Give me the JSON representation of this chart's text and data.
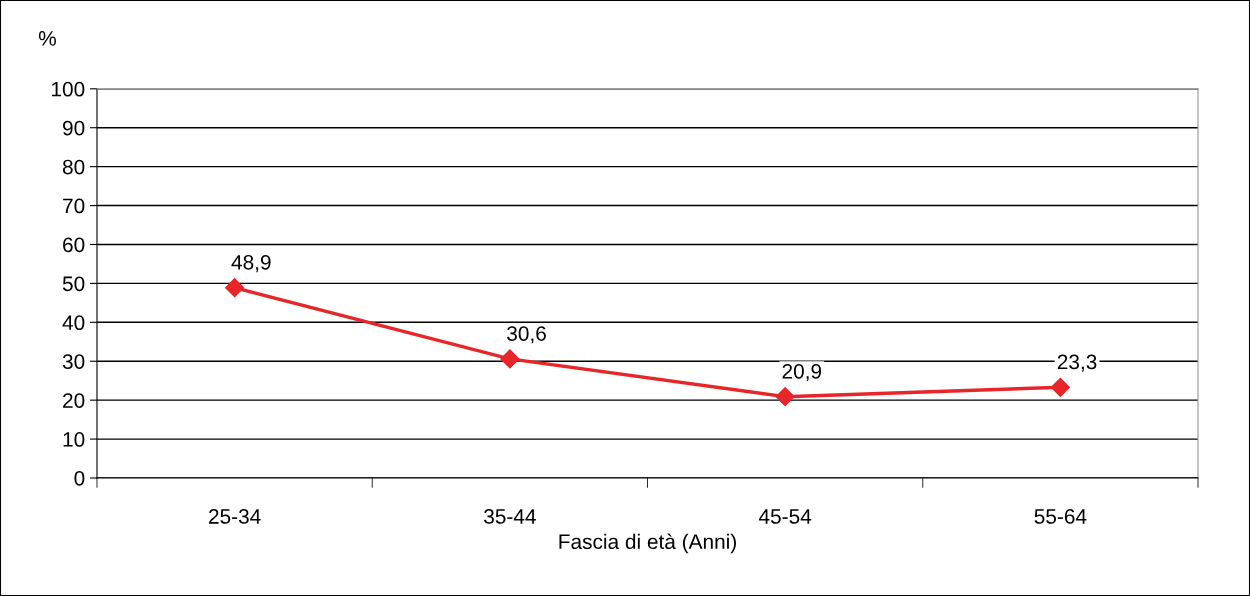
{
  "chart_data": {
    "type": "line",
    "xlabel": "Fascia di età (Anni)",
    "ylabel": "%",
    "categories": [
      "25-34",
      "35-44",
      "45-54",
      "55-64"
    ],
    "series": [
      {
        "color": "#e8262a",
        "values": [
          48.9,
          30.6,
          20.9,
          23.3
        ],
        "value_labels": [
          "48,9",
          "30,6",
          "20,9",
          "23,3"
        ]
      }
    ],
    "ylim": [
      0,
      100
    ],
    "yticks": [
      0,
      10,
      20,
      30,
      40,
      50,
      60,
      70,
      80,
      90,
      100
    ],
    "grid": "y",
    "marker": "diamond",
    "line_style": "solid",
    "legend": false
  }
}
